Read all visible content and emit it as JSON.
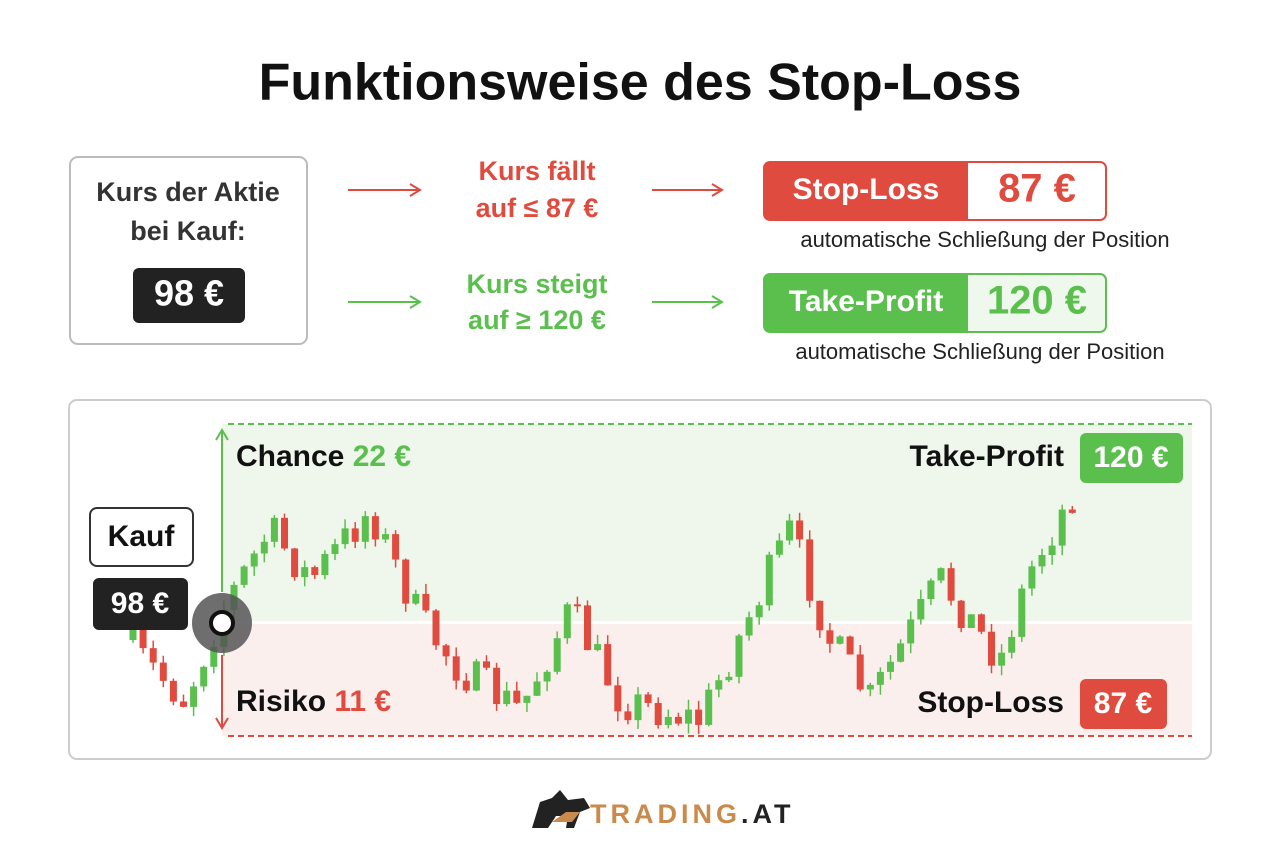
{
  "title": "Funktionsweise des Stop-Loss",
  "purchase": {
    "label_lines": [
      "Kurs der Aktie",
      "bei Kauf:"
    ],
    "price": "98 €"
  },
  "rules": [
    {
      "condition_lines": [
        "Kurs fällt",
        "auf ≤ 87 €"
      ],
      "order": "Stop-Loss",
      "price": "87 €",
      "note": "automatische Schließung der Position"
    },
    {
      "condition_lines": [
        "Kurs steigt",
        "auf ≥ 120 €"
      ],
      "order": "Take-Profit",
      "price": "120 €",
      "note": "automatische Schließung der Position"
    }
  ],
  "chart": {
    "chance_label": "Chance",
    "chance_value": "22 €",
    "risk_label": "Risiko",
    "risk_value": "11 €",
    "buy_label": "Kauf",
    "buy_price": "98 €",
    "take_profit_label": "Take-Profit",
    "take_profit_price": "120 €",
    "stop_loss_label": "Stop-Loss",
    "stop_loss_price": "87 €"
  },
  "brand": {
    "name": "TRADING",
    "suffix": ".AT"
  }
}
